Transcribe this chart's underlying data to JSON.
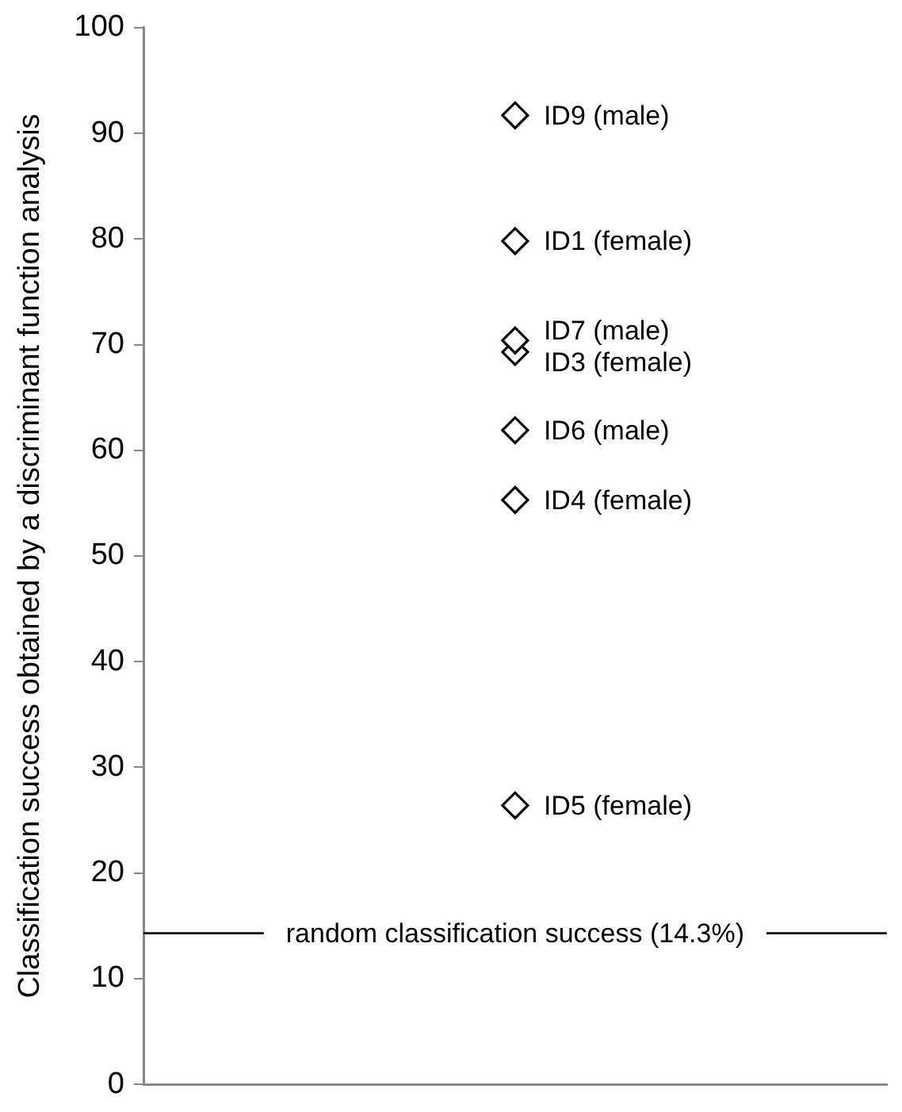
{
  "chart_data": {
    "type": "scatter",
    "ylabel": "Classification success obtained by a discriminant function analysis",
    "categories": [
      null
    ],
    "series": [
      {
        "name": "ID9 (male)",
        "color": "#000000",
        "values": [
          91.7
        ]
      },
      {
        "name": "ID1 (female)",
        "color": "#000000",
        "values": [
          79.8
        ]
      },
      {
        "name": "ID7 (male)",
        "color": "#000000",
        "values": [
          70.4
        ]
      },
      {
        "name": "ID3 (female)",
        "color": "#000000",
        "values": [
          69.3
        ]
      },
      {
        "name": "ID6 (male)",
        "color": "#000000",
        "values": [
          61.9
        ]
      },
      {
        "name": "ID4 (female)",
        "color": "#000000",
        "values": [
          55.3
        ]
      },
      {
        "name": "ID5 (female)",
        "color": "#000000",
        "values": [
          26.4
        ]
      }
    ],
    "ylim": [
      0,
      100
    ],
    "yticks": [
      0,
      10,
      20,
      30,
      40,
      50,
      60,
      70,
      80,
      90,
      100
    ],
    "ref_lines": [
      {
        "axis": "y",
        "value": 14.3,
        "label": "random classification success (14.3%)",
        "color": "#000000"
      }
    ],
    "marker": "diamond",
    "grid": false,
    "legend": false,
    "tick_labels": "y"
  }
}
